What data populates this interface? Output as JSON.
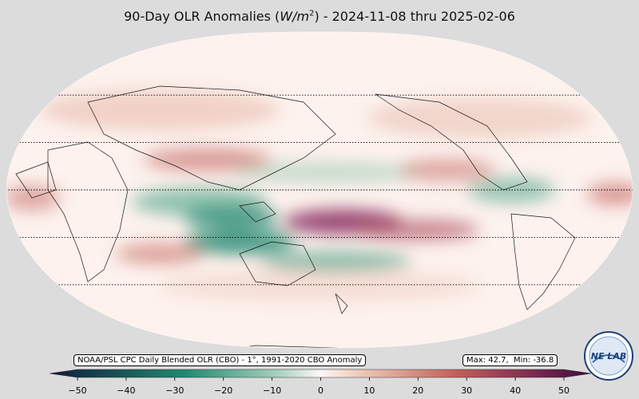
{
  "title": {
    "prefix": "90-Day OLR Anomalies (",
    "unit_base": "W/m",
    "unit_exp": "2",
    "suffix": ") - 2024-11-08 thru 2025-02-06"
  },
  "source_note": "NOAA/PSL CPC Daily Blended OLR (CBO) - 1°, 1991-2020 CBO Anomaly",
  "stats": {
    "max_label": "Max: 42.7,",
    "min_label": "Min: -36.8"
  },
  "logo": {
    "text": "NE LAB"
  },
  "colorbar": {
    "ticks": [
      -50,
      -40,
      -30,
      -20,
      -10,
      0,
      10,
      20,
      30,
      40,
      50
    ],
    "range": [
      -50,
      50
    ],
    "colors": {
      "neg_end": "#0f1a3a",
      "neg_mid": "#1f8a70",
      "zero": "#fdf7f4",
      "pos_mid": "#c2605a",
      "pos_end": "#3b0a3b"
    }
  },
  "map": {
    "projection": "robinson",
    "central_longitude": 180,
    "background": "#fdf2ee",
    "land_outline": "#000000",
    "gridline_latitudes": [
      -60,
      -30,
      0,
      30,
      60
    ]
  }
}
